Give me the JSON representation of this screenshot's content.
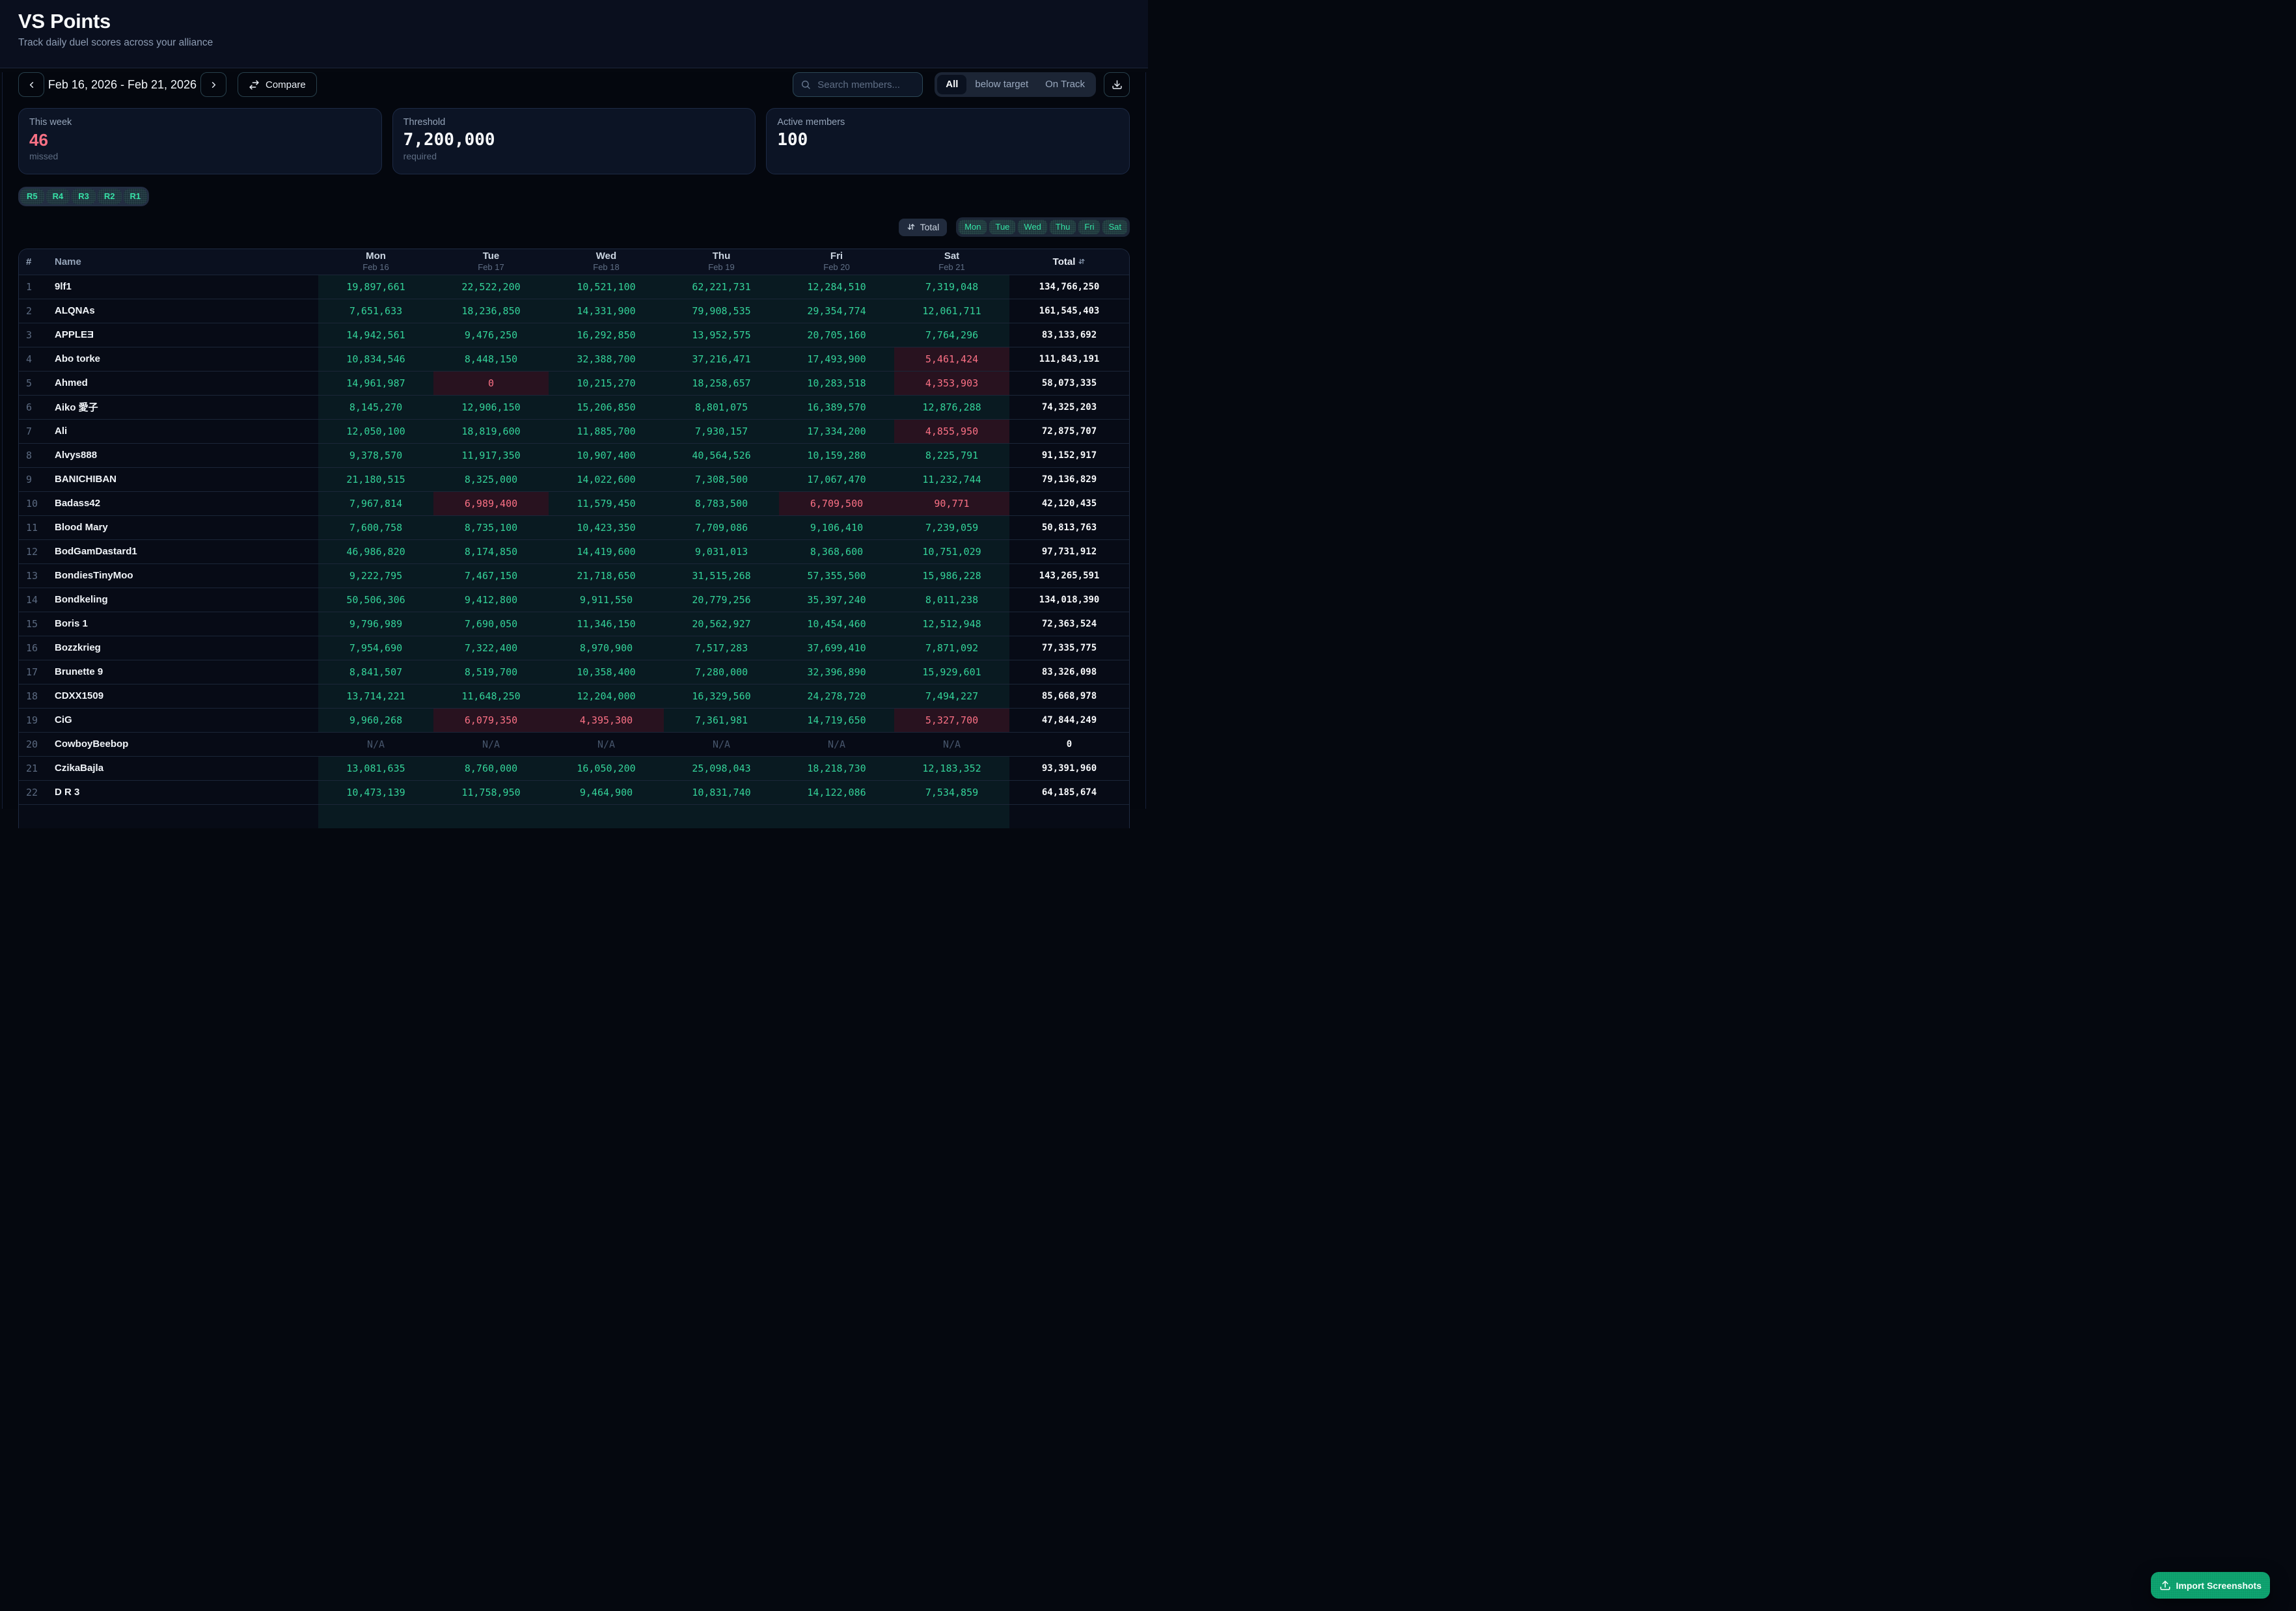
{
  "header": {
    "title": "VS Points",
    "subtitle": "Track daily duel scores across your alliance"
  },
  "toolbar": {
    "date_range": "Feb 16, 2026 - Feb 21, 2026",
    "compare_label": "Compare",
    "search_placeholder": "Search members...",
    "filter_tabs": [
      {
        "label": "All",
        "active": true
      },
      {
        "label": "below target",
        "active": false
      },
      {
        "label": "On Track",
        "active": false
      }
    ]
  },
  "stats": [
    {
      "label": "This week",
      "value": "46",
      "sub": "missed",
      "negative": true,
      "mono": false
    },
    {
      "label": "Threshold",
      "value": "7,200,000",
      "sub": "required",
      "negative": false,
      "mono": true
    },
    {
      "label": "Active members",
      "value": "100",
      "sub": "",
      "negative": false,
      "mono": true
    }
  ],
  "rank_filters": [
    "R5",
    "R4",
    "R3",
    "R2",
    "R1"
  ],
  "sort_control": {
    "label": "Total"
  },
  "day_filters": [
    "Mon",
    "Tue",
    "Wed",
    "Thu",
    "Fri",
    "Sat"
  ],
  "table": {
    "columns": {
      "rank": "#",
      "name": "Name",
      "total": "Total"
    },
    "days": [
      {
        "day": "Mon",
        "date": "Feb 16"
      },
      {
        "day": "Tue",
        "date": "Feb 17"
      },
      {
        "day": "Wed",
        "date": "Feb 18"
      },
      {
        "day": "Thu",
        "date": "Feb 19"
      },
      {
        "day": "Fri",
        "date": "Feb 20"
      },
      {
        "day": "Sat",
        "date": "Feb 21"
      }
    ],
    "has_more_rows": true,
    "rows": [
      {
        "rank": "1",
        "name": "9lf1",
        "values": [
          {
            "v": "19,897,661",
            "s": "ok"
          },
          {
            "v": "22,522,200",
            "s": "ok"
          },
          {
            "v": "10,521,100",
            "s": "ok"
          },
          {
            "v": "62,221,731",
            "s": "ok"
          },
          {
            "v": "12,284,510",
            "s": "ok"
          },
          {
            "v": "7,319,048",
            "s": "ok"
          }
        ],
        "total": "134,766,250"
      },
      {
        "rank": "2",
        "name": "ALQNAs",
        "values": [
          {
            "v": "7,651,633",
            "s": "ok"
          },
          {
            "v": "18,236,850",
            "s": "ok"
          },
          {
            "v": "14,331,900",
            "s": "ok"
          },
          {
            "v": "79,908,535",
            "s": "ok"
          },
          {
            "v": "29,354,774",
            "s": "ok"
          },
          {
            "v": "12,061,711",
            "s": "ok"
          }
        ],
        "total": "161,545,403"
      },
      {
        "rank": "3",
        "name": "APPLEƎ",
        "values": [
          {
            "v": "14,942,561",
            "s": "ok"
          },
          {
            "v": "9,476,250",
            "s": "ok"
          },
          {
            "v": "16,292,850",
            "s": "ok"
          },
          {
            "v": "13,952,575",
            "s": "ok"
          },
          {
            "v": "20,705,160",
            "s": "ok"
          },
          {
            "v": "7,764,296",
            "s": "ok"
          }
        ],
        "total": "83,133,692"
      },
      {
        "rank": "4",
        "name": "Abo torke",
        "values": [
          {
            "v": "10,834,546",
            "s": "ok"
          },
          {
            "v": "8,448,150",
            "s": "ok"
          },
          {
            "v": "32,388,700",
            "s": "ok"
          },
          {
            "v": "37,216,471",
            "s": "ok"
          },
          {
            "v": "17,493,900",
            "s": "ok"
          },
          {
            "v": "5,461,424",
            "s": "bad"
          }
        ],
        "total": "111,843,191"
      },
      {
        "rank": "5",
        "name": "Ahmed",
        "values": [
          {
            "v": "14,961,987",
            "s": "ok"
          },
          {
            "v": "0",
            "s": "bad"
          },
          {
            "v": "10,215,270",
            "s": "ok"
          },
          {
            "v": "18,258,657",
            "s": "ok"
          },
          {
            "v": "10,283,518",
            "s": "ok"
          },
          {
            "v": "4,353,903",
            "s": "bad"
          }
        ],
        "total": "58,073,335"
      },
      {
        "rank": "6",
        "name": "Aiko 愛子",
        "values": [
          {
            "v": "8,145,270",
            "s": "ok"
          },
          {
            "v": "12,906,150",
            "s": "ok"
          },
          {
            "v": "15,206,850",
            "s": "ok"
          },
          {
            "v": "8,801,075",
            "s": "ok"
          },
          {
            "v": "16,389,570",
            "s": "ok"
          },
          {
            "v": "12,876,288",
            "s": "ok"
          }
        ],
        "total": "74,325,203"
      },
      {
        "rank": "7",
        "name": "Ali",
        "values": [
          {
            "v": "12,050,100",
            "s": "ok"
          },
          {
            "v": "18,819,600",
            "s": "ok"
          },
          {
            "v": "11,885,700",
            "s": "ok"
          },
          {
            "v": "7,930,157",
            "s": "ok"
          },
          {
            "v": "17,334,200",
            "s": "ok"
          },
          {
            "v": "4,855,950",
            "s": "bad"
          }
        ],
        "total": "72,875,707"
      },
      {
        "rank": "8",
        "name": "Alvys888",
        "values": [
          {
            "v": "9,378,570",
            "s": "ok"
          },
          {
            "v": "11,917,350",
            "s": "ok"
          },
          {
            "v": "10,907,400",
            "s": "ok"
          },
          {
            "v": "40,564,526",
            "s": "ok"
          },
          {
            "v": "10,159,280",
            "s": "ok"
          },
          {
            "v": "8,225,791",
            "s": "ok"
          }
        ],
        "total": "91,152,917"
      },
      {
        "rank": "9",
        "name": "BANICHIBAN",
        "values": [
          {
            "v": "21,180,515",
            "s": "ok"
          },
          {
            "v": "8,325,000",
            "s": "ok"
          },
          {
            "v": "14,022,600",
            "s": "ok"
          },
          {
            "v": "7,308,500",
            "s": "ok"
          },
          {
            "v": "17,067,470",
            "s": "ok"
          },
          {
            "v": "11,232,744",
            "s": "ok"
          }
        ],
        "total": "79,136,829"
      },
      {
        "rank": "10",
        "name": "Badass42",
        "values": [
          {
            "v": "7,967,814",
            "s": "ok"
          },
          {
            "v": "6,989,400",
            "s": "bad"
          },
          {
            "v": "11,579,450",
            "s": "ok"
          },
          {
            "v": "8,783,500",
            "s": "ok"
          },
          {
            "v": "6,709,500",
            "s": "bad"
          },
          {
            "v": "90,771",
            "s": "bad"
          }
        ],
        "total": "42,120,435"
      },
      {
        "rank": "11",
        "name": "Blood Mary",
        "values": [
          {
            "v": "7,600,758",
            "s": "ok"
          },
          {
            "v": "8,735,100",
            "s": "ok"
          },
          {
            "v": "10,423,350",
            "s": "ok"
          },
          {
            "v": "7,709,086",
            "s": "ok"
          },
          {
            "v": "9,106,410",
            "s": "ok"
          },
          {
            "v": "7,239,059",
            "s": "ok"
          }
        ],
        "total": "50,813,763"
      },
      {
        "rank": "12",
        "name": "BodGamDastard1",
        "values": [
          {
            "v": "46,986,820",
            "s": "ok"
          },
          {
            "v": "8,174,850",
            "s": "ok"
          },
          {
            "v": "14,419,600",
            "s": "ok"
          },
          {
            "v": "9,031,013",
            "s": "ok"
          },
          {
            "v": "8,368,600",
            "s": "ok"
          },
          {
            "v": "10,751,029",
            "s": "ok"
          }
        ],
        "total": "97,731,912"
      },
      {
        "rank": "13",
        "name": "BondiesTinyMoo",
        "values": [
          {
            "v": "9,222,795",
            "s": "ok"
          },
          {
            "v": "7,467,150",
            "s": "ok"
          },
          {
            "v": "21,718,650",
            "s": "ok"
          },
          {
            "v": "31,515,268",
            "s": "ok"
          },
          {
            "v": "57,355,500",
            "s": "ok"
          },
          {
            "v": "15,986,228",
            "s": "ok"
          }
        ],
        "total": "143,265,591"
      },
      {
        "rank": "14",
        "name": "Bondkeling",
        "values": [
          {
            "v": "50,506,306",
            "s": "ok"
          },
          {
            "v": "9,412,800",
            "s": "ok"
          },
          {
            "v": "9,911,550",
            "s": "ok"
          },
          {
            "v": "20,779,256",
            "s": "ok"
          },
          {
            "v": "35,397,240",
            "s": "ok"
          },
          {
            "v": "8,011,238",
            "s": "ok"
          }
        ],
        "total": "134,018,390"
      },
      {
        "rank": "15",
        "name": "Boris 1",
        "values": [
          {
            "v": "9,796,989",
            "s": "ok"
          },
          {
            "v": "7,690,050",
            "s": "ok"
          },
          {
            "v": "11,346,150",
            "s": "ok"
          },
          {
            "v": "20,562,927",
            "s": "ok"
          },
          {
            "v": "10,454,460",
            "s": "ok"
          },
          {
            "v": "12,512,948",
            "s": "ok"
          }
        ],
        "total": "72,363,524"
      },
      {
        "rank": "16",
        "name": "Bozzkrieg",
        "values": [
          {
            "v": "7,954,690",
            "s": "ok"
          },
          {
            "v": "7,322,400",
            "s": "ok"
          },
          {
            "v": "8,970,900",
            "s": "ok"
          },
          {
            "v": "7,517,283",
            "s": "ok"
          },
          {
            "v": "37,699,410",
            "s": "ok"
          },
          {
            "v": "7,871,092",
            "s": "ok"
          }
        ],
        "total": "77,335,775"
      },
      {
        "rank": "17",
        "name": "Brunette 9",
        "values": [
          {
            "v": "8,841,507",
            "s": "ok"
          },
          {
            "v": "8,519,700",
            "s": "ok"
          },
          {
            "v": "10,358,400",
            "s": "ok"
          },
          {
            "v": "7,280,000",
            "s": "ok"
          },
          {
            "v": "32,396,890",
            "s": "ok"
          },
          {
            "v": "15,929,601",
            "s": "ok"
          }
        ],
        "total": "83,326,098"
      },
      {
        "rank": "18",
        "name": "CDXX1509",
        "values": [
          {
            "v": "13,714,221",
            "s": "ok"
          },
          {
            "v": "11,648,250",
            "s": "ok"
          },
          {
            "v": "12,204,000",
            "s": "ok"
          },
          {
            "v": "16,329,560",
            "s": "ok"
          },
          {
            "v": "24,278,720",
            "s": "ok"
          },
          {
            "v": "7,494,227",
            "s": "ok"
          }
        ],
        "total": "85,668,978"
      },
      {
        "rank": "19",
        "name": "CiG",
        "values": [
          {
            "v": "9,960,268",
            "s": "ok"
          },
          {
            "v": "6,079,350",
            "s": "bad"
          },
          {
            "v": "4,395,300",
            "s": "bad"
          },
          {
            "v": "7,361,981",
            "s": "ok"
          },
          {
            "v": "14,719,650",
            "s": "ok"
          },
          {
            "v": "5,327,700",
            "s": "bad"
          }
        ],
        "total": "47,844,249"
      },
      {
        "rank": "20",
        "name": "CowboyBeebop",
        "values": [
          {
            "v": "N/A",
            "s": "na"
          },
          {
            "v": "N/A",
            "s": "na"
          },
          {
            "v": "N/A",
            "s": "na"
          },
          {
            "v": "N/A",
            "s": "na"
          },
          {
            "v": "N/A",
            "s": "na"
          },
          {
            "v": "N/A",
            "s": "na"
          }
        ],
        "total": "0"
      },
      {
        "rank": "21",
        "name": "CzikaBajla",
        "values": [
          {
            "v": "13,081,635",
            "s": "ok"
          },
          {
            "v": "8,760,000",
            "s": "ok"
          },
          {
            "v": "16,050,200",
            "s": "ok"
          },
          {
            "v": "25,098,043",
            "s": "ok"
          },
          {
            "v": "18,218,730",
            "s": "ok"
          },
          {
            "v": "12,183,352",
            "s": "ok"
          }
        ],
        "total": "93,391,960"
      },
      {
        "rank": "22",
        "name": "D R 3",
        "values": [
          {
            "v": "10,473,139",
            "s": "ok"
          },
          {
            "v": "11,758,950",
            "s": "ok"
          },
          {
            "v": "9,464,900",
            "s": "ok"
          },
          {
            "v": "10,831,740",
            "s": "ok"
          },
          {
            "v": "14,122,086",
            "s": "ok"
          },
          {
            "v": "7,534,859",
            "s": "ok"
          }
        ],
        "total": "64,185,674"
      }
    ]
  },
  "import_button": {
    "label": "Import Screenshots"
  },
  "colors": {
    "positive": "#34d399",
    "negative": "#fb7185",
    "brand_green": "#0fa571",
    "page_background": "#05080f",
    "card_background": "#0c1425"
  }
}
